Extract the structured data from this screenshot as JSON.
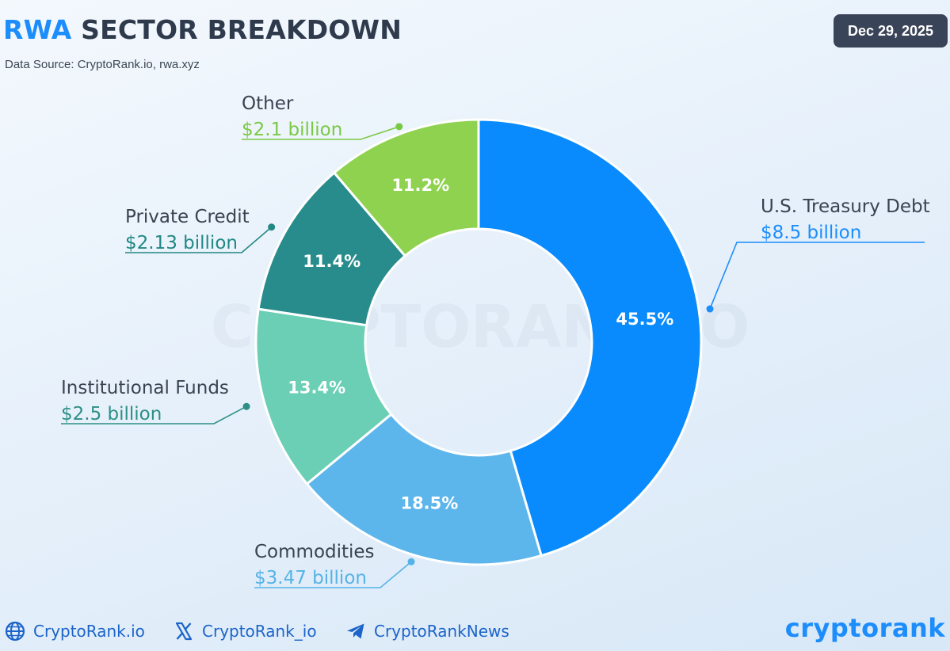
{
  "header": {
    "title_accent": "RWA",
    "title_rest": "SECTOR BREAKDOWN",
    "source": "Data Source: CryptoRank.io, rwa.xyz",
    "date": "Dec 29, 2025"
  },
  "watermark": "CRYPTORANK.IO",
  "chart_data": {
    "type": "pie",
    "variant": "donut",
    "unit": "billion USD",
    "slices": [
      {
        "label": "U.S. Treasury Debt",
        "value": 8.5,
        "value_label": "$8.5 billion",
        "percent": 45.5,
        "percent_label": "45.5%",
        "color": "#0a8bfd",
        "label_color": "#1c8dfb"
      },
      {
        "label": "Commodities",
        "value": 3.47,
        "value_label": "$3.47 billion",
        "percent": 18.5,
        "percent_label": "18.5%",
        "color": "#5cb6ec",
        "label_color": "#55b3e8"
      },
      {
        "label": "Institutional Funds",
        "value": 2.5,
        "value_label": "$2.5 billion",
        "percent": 13.4,
        "percent_label": "13.4%",
        "color": "#6acfb4",
        "label_color": "#2d8f86"
      },
      {
        "label": "Private Credit",
        "value": 2.13,
        "value_label": "$2.13 billion",
        "percent": 11.4,
        "percent_label": "11.4%",
        "color": "#278c8b",
        "label_color": "#218883"
      },
      {
        "label": "Other",
        "value": 2.1,
        "value_label": "$2.1 billion",
        "percent": 11.2,
        "percent_label": "11.2%",
        "color": "#8ed24f",
        "label_color": "#7ac943"
      }
    ]
  },
  "footer": {
    "website": "CryptoRank.io",
    "x_handle": "CryptoRank_io",
    "telegram": "CryptoRankNews",
    "logo_text": "cryptorank"
  },
  "icons": [
    "globe-icon",
    "x-logo-icon",
    "telegram-icon"
  ]
}
